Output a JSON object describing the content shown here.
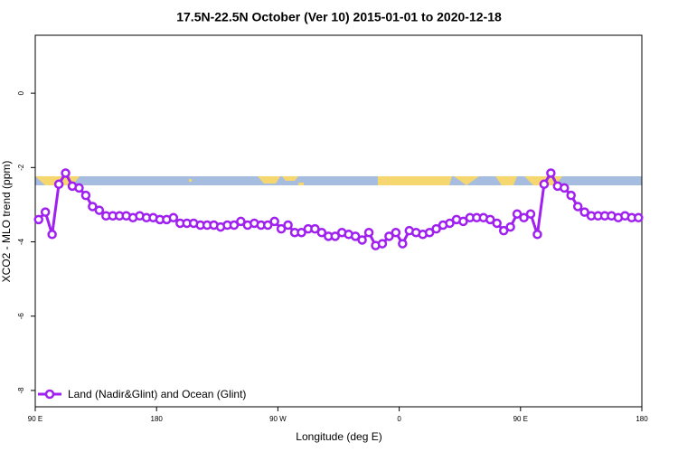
{
  "chart_data": {
    "type": "line",
    "title": "17.5N-22.5N October (Ver 10)   2015-01-01 to 2020-12-18",
    "x_label": "Longitude (deg E)",
    "y_label": "XCO2 - MLO trend (ppm)",
    "x": [
      92.5,
      97.5,
      102.5,
      107.5,
      112.5,
      117.5,
      122.5,
      127.5,
      132.5,
      137.5,
      142.5,
      147.5,
      152.5,
      157.5,
      162.5,
      167.5,
      172.5,
      177.5,
      182.5,
      187.5,
      192.5,
      197.5,
      202.5,
      207.5,
      212.5,
      217.5,
      222.5,
      227.5,
      232.5,
      237.5,
      242.5,
      247.5,
      252.5,
      257.5,
      262.5,
      267.5,
      272.5,
      277.5,
      282.5,
      287.5,
      292.5,
      297.5,
      302.5,
      307.5,
      312.5,
      317.5,
      322.5,
      327.5,
      332.5,
      337.5,
      342.5,
      347.5,
      352.5,
      357.5,
      362.5,
      367.5,
      372.5,
      377.5,
      382.5,
      387.5,
      392.5,
      397.5,
      402.5,
      407.5,
      412.5,
      417.5,
      422.5,
      427.5,
      432.5,
      437.5,
      442.5,
      447.5,
      452.5,
      457.5,
      462.5,
      467.5,
      472.5,
      477.5,
      482.5,
      487.5,
      492.5,
      497.5,
      502.5,
      507.5,
      512.5,
      517.5,
      522.5,
      527.5,
      532.5,
      537.5
    ],
    "series": [
      {
        "name": "Land (Nadir&Glint) and Ocean (Glint)",
        "color": "#a020f0",
        "values": [
          -3.4,
          -3.2,
          -3.8,
          -2.45,
          -2.15,
          -2.5,
          -2.55,
          -2.75,
          -3.05,
          -3.15,
          -3.3,
          -3.3,
          -3.3,
          -3.3,
          -3.35,
          -3.3,
          -3.35,
          -3.35,
          -3.4,
          -3.4,
          -3.35,
          -3.5,
          -3.5,
          -3.5,
          -3.55,
          -3.55,
          -3.55,
          -3.6,
          -3.55,
          -3.55,
          -3.45,
          -3.55,
          -3.5,
          -3.55,
          -3.55,
          -3.45,
          -3.65,
          -3.55,
          -3.75,
          -3.75,
          -3.65,
          -3.65,
          -3.75,
          -3.85,
          -3.85,
          -3.75,
          -3.8,
          -3.85,
          -3.95,
          -3.75,
          -4.1,
          -4.05,
          -3.85,
          -3.75,
          -4.05,
          -3.7,
          -3.75,
          -3.8,
          -3.75,
          -3.65,
          -3.55,
          -3.5,
          -3.4,
          -3.45,
          -3.35,
          -3.35,
          -3.35,
          -3.4,
          -3.5,
          -3.7,
          -3.6,
          -3.25,
          -3.35,
          -3.25,
          -3.8,
          -2.45,
          -2.15,
          -2.5,
          -2.55,
          -2.75,
          -3.05,
          -3.2,
          -3.3,
          -3.3,
          -3.3,
          -3.3,
          -3.35,
          -3.3,
          -3.35,
          -3.35
        ]
      }
    ],
    "xlim": [
      90,
      540
    ],
    "xticks": [
      {
        "value": 90,
        "label": "90 E"
      },
      180,
      {
        "value": 270,
        "label": "90 W"
      },
      {
        "value": 360,
        "label": "0"
      },
      {
        "value": 450,
        "label": "90 E"
      },
      {
        "value": 540,
        "label": "180"
      }
    ],
    "ylim": [
      -8.44,
      1.56
    ],
    "yticks": [
      0,
      -2,
      -4,
      -6,
      -8
    ],
    "legend": "lower left"
  }
}
